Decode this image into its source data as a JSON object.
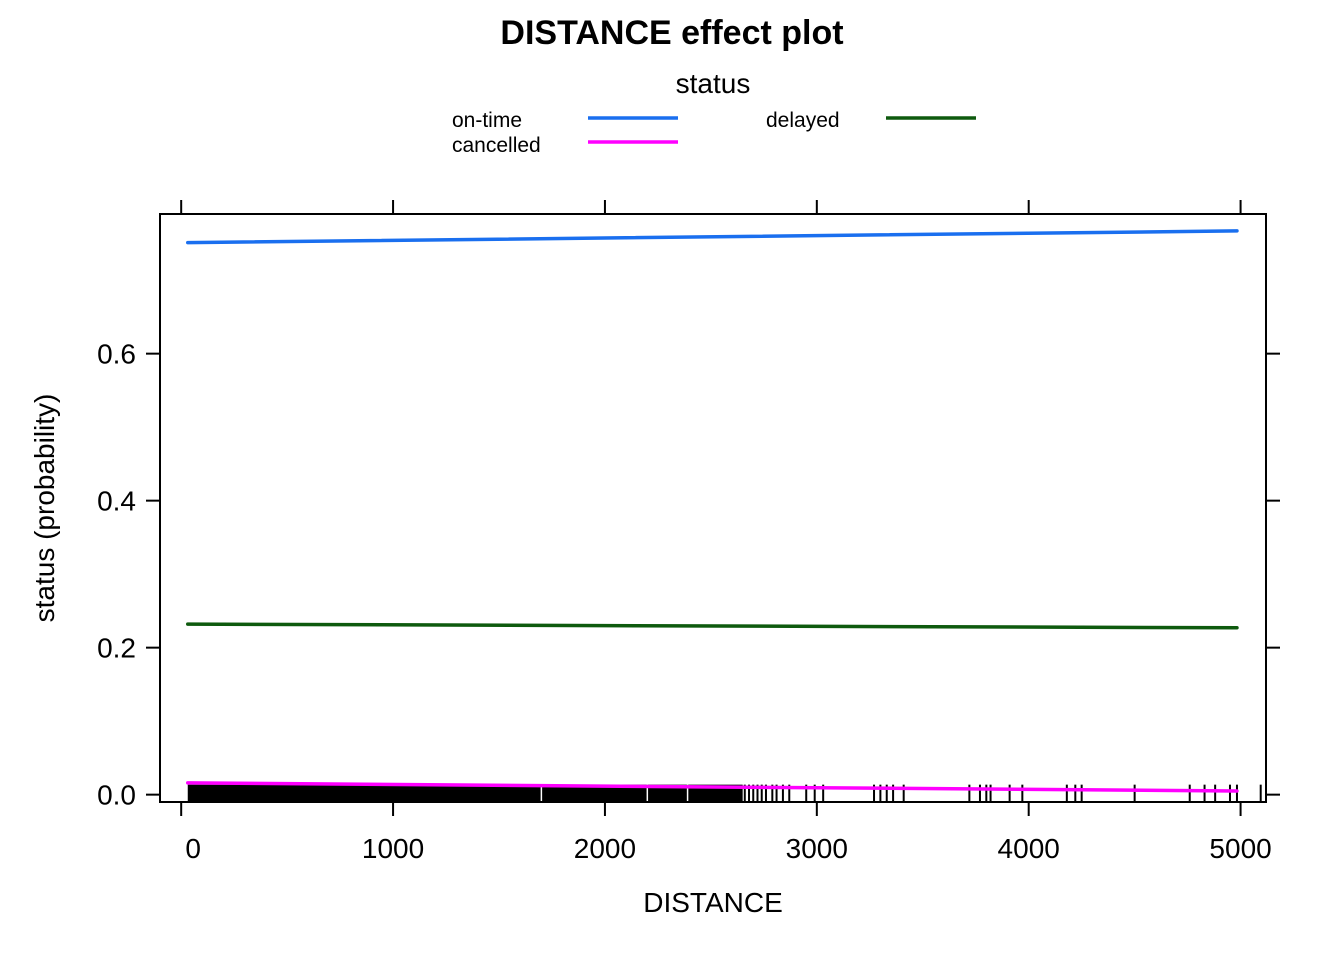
{
  "chart_data": {
    "type": "line",
    "title": "DISTANCE effect plot",
    "xlabel": "DISTANCE",
    "ylabel": "status (probability)",
    "xlim": [
      -100,
      5120
    ],
    "ylim": [
      -0.01,
      0.79
    ],
    "x_ticks": [
      0,
      1000,
      2000,
      3000,
      4000,
      5000
    ],
    "x_tick_labels": [
      "0",
      "1000",
      "2000",
      "3000",
      "4000",
      "5000"
    ],
    "y_ticks": [
      0.0,
      0.2,
      0.4,
      0.6
    ],
    "y_tick_labels": [
      "0.0",
      "0.2",
      "0.4",
      "0.6"
    ],
    "grid": false,
    "legend": {
      "title": "status",
      "placement": "top",
      "entries": [
        {
          "label": "on-time",
          "color": "#1a6fef"
        },
        {
          "label": "delayed",
          "color": "#0e5a0e"
        },
        {
          "label": "cancelled",
          "color": "#ff00ff"
        }
      ]
    },
    "series": [
      {
        "name": "on-time",
        "color": "#1a6fef",
        "x": [
          31,
          4983
        ],
        "y": [
          0.751,
          0.767
        ]
      },
      {
        "name": "delayed",
        "color": "#0e5a0e",
        "x": [
          31,
          4983
        ],
        "y": [
          0.232,
          0.227
        ]
      },
      {
        "name": "cancelled",
        "color": "#ff00ff",
        "x": [
          31,
          4983
        ],
        "y": [
          0.016,
          0.005
        ]
      }
    ],
    "rug": {
      "dense_range": [
        31,
        2650
      ],
      "x": [
        2660,
        2680,
        2700,
        2720,
        2740,
        2760,
        2790,
        2810,
        2840,
        2870,
        2950,
        2990,
        3030,
        3270,
        3300,
        3330,
        3360,
        3410,
        3720,
        3770,
        3800,
        3820,
        3910,
        3970,
        4180,
        4220,
        4250,
        4500,
        4760,
        4830,
        4880,
        4950,
        4983,
        5095
      ]
    }
  }
}
